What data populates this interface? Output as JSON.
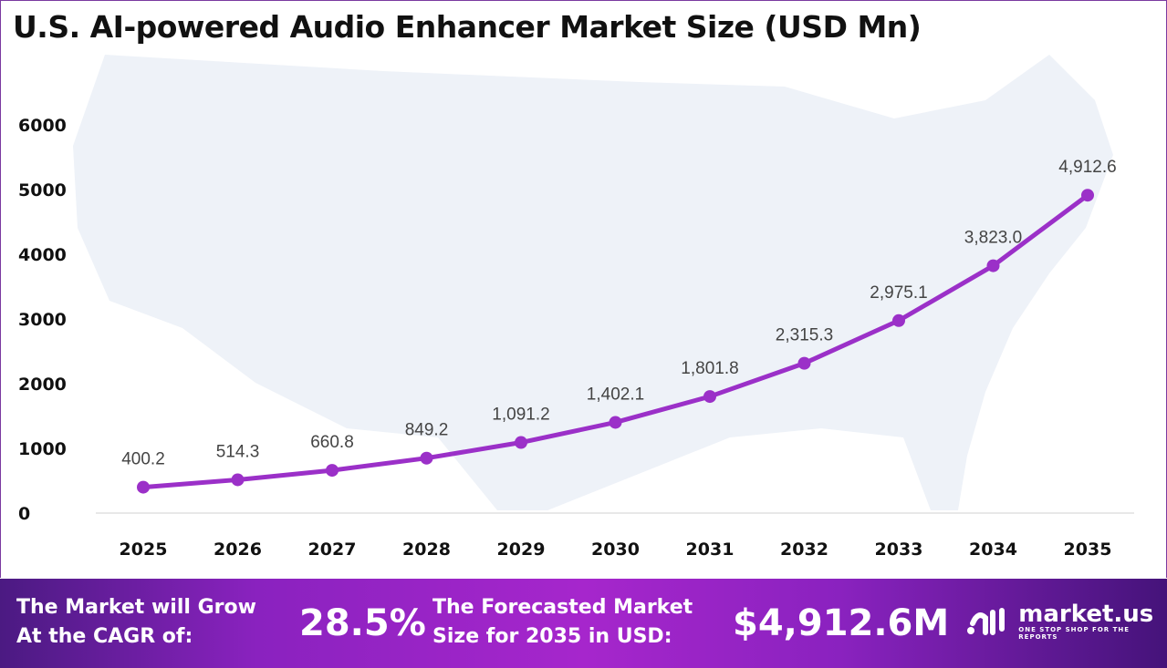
{
  "chart_data": {
    "type": "line",
    "title": "U.S. AI-powered Audio Enhancer Market Size (USD Mn)",
    "categories": [
      "2025",
      "2026",
      "2027",
      "2028",
      "2029",
      "2030",
      "2031",
      "2032",
      "2033",
      "2034",
      "2035"
    ],
    "values": [
      400.2,
      514.3,
      660.8,
      849.2,
      1091.2,
      1402.1,
      1801.8,
      2315.3,
      2975.1,
      3823.0,
      4912.6
    ],
    "data_labels": [
      "400.2",
      "514.3",
      "660.8",
      "849.2",
      "1,091.2",
      "1,402.1",
      "1,801.8",
      "2,315.3",
      "2,975.1",
      "3,823.0",
      "4,912.6"
    ],
    "ylim": [
      0,
      6000
    ],
    "yticks": [
      "0",
      "1000",
      "2000",
      "3000",
      "4000",
      "5000",
      "6000"
    ],
    "grid": false,
    "line_color": "#9b30c8",
    "xlabel": "",
    "ylabel": ""
  },
  "footer": {
    "cagr_label_1": "The Market will Grow",
    "cagr_label_2": "At the CAGR of:",
    "cagr_value": "28.5%",
    "forecast_label_1": "The Forecasted Market",
    "forecast_label_2": "Size for 2035 in USD:",
    "forecast_value": "$4,912.6M",
    "logo_name": "market.us",
    "logo_tagline": "ONE STOP SHOP FOR THE REPORTS"
  }
}
